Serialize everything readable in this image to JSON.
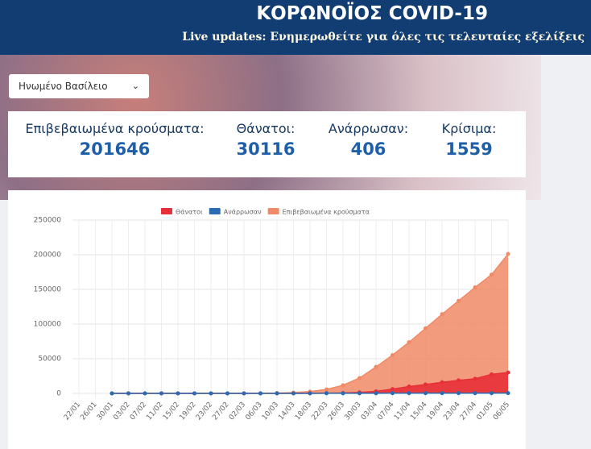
{
  "header": {
    "title": "ΚΟΡΩΝΟΪΟΣ COVID-19",
    "subtitle": "Live updates: Ενημερωθείτε για όλες τις τελευταίες εξελίξεις"
  },
  "selector": {
    "label": "Ηνωμένο Βασίλειο"
  },
  "stats": [
    {
      "label": "Επιβεβαιωμένα κρούσματα:",
      "value": "201646"
    },
    {
      "label": "Θάνατοι:",
      "value": "30116"
    },
    {
      "label": "Ανάρρωσαν:",
      "value": "406"
    },
    {
      "label": "Κρίσιμα:",
      "value": "1559"
    }
  ],
  "chart_data": {
    "type": "line",
    "categories": [
      "22/01",
      "26/01",
      "30/01",
      "03/02",
      "07/02",
      "11/02",
      "15/02",
      "19/02",
      "23/02",
      "27/02",
      "02/03",
      "06/03",
      "10/03",
      "14/03",
      "18/03",
      "22/03",
      "26/03",
      "30/03",
      "03/04",
      "07/04",
      "11/04",
      "15/04",
      "19/04",
      "23/04",
      "27/04",
      "01/05",
      "06/05"
    ],
    "series": [
      {
        "name": "Θάνατοι",
        "color": "#e8303a",
        "values": [
          null,
          null,
          0,
          0,
          0,
          0,
          0,
          0,
          0,
          0,
          0,
          1,
          6,
          21,
          104,
          281,
          578,
          1411,
          2921,
          6159,
          9875,
          12868,
          16060,
          18738,
          21092,
          27510,
          30076
        ]
      },
      {
        "name": "Ανάρρωσαν",
        "color": "#2a6db5",
        "values": [
          null,
          null,
          0,
          0,
          0,
          0,
          8,
          8,
          8,
          8,
          8,
          18,
          18,
          19,
          65,
          135,
          135,
          135,
          135,
          344,
          344,
          344,
          344,
          344,
          344,
          344,
          406
        ]
      },
      {
        "name": "Επιβεβαιωμένα κρούσματα",
        "color": "#f08a66",
        "values": [
          null,
          null,
          0,
          2,
          3,
          8,
          9,
          9,
          13,
          15,
          40,
          163,
          373,
          1144,
          2642,
          5683,
          11658,
          22141,
          38168,
          55242,
          73758,
          93873,
          114217,
          133495,
          152840,
          171253,
          201101
        ]
      }
    ],
    "ylim": [
      0,
      250000
    ],
    "yticks": [
      0,
      50000,
      100000,
      150000,
      200000,
      250000
    ],
    "grid": true
  }
}
